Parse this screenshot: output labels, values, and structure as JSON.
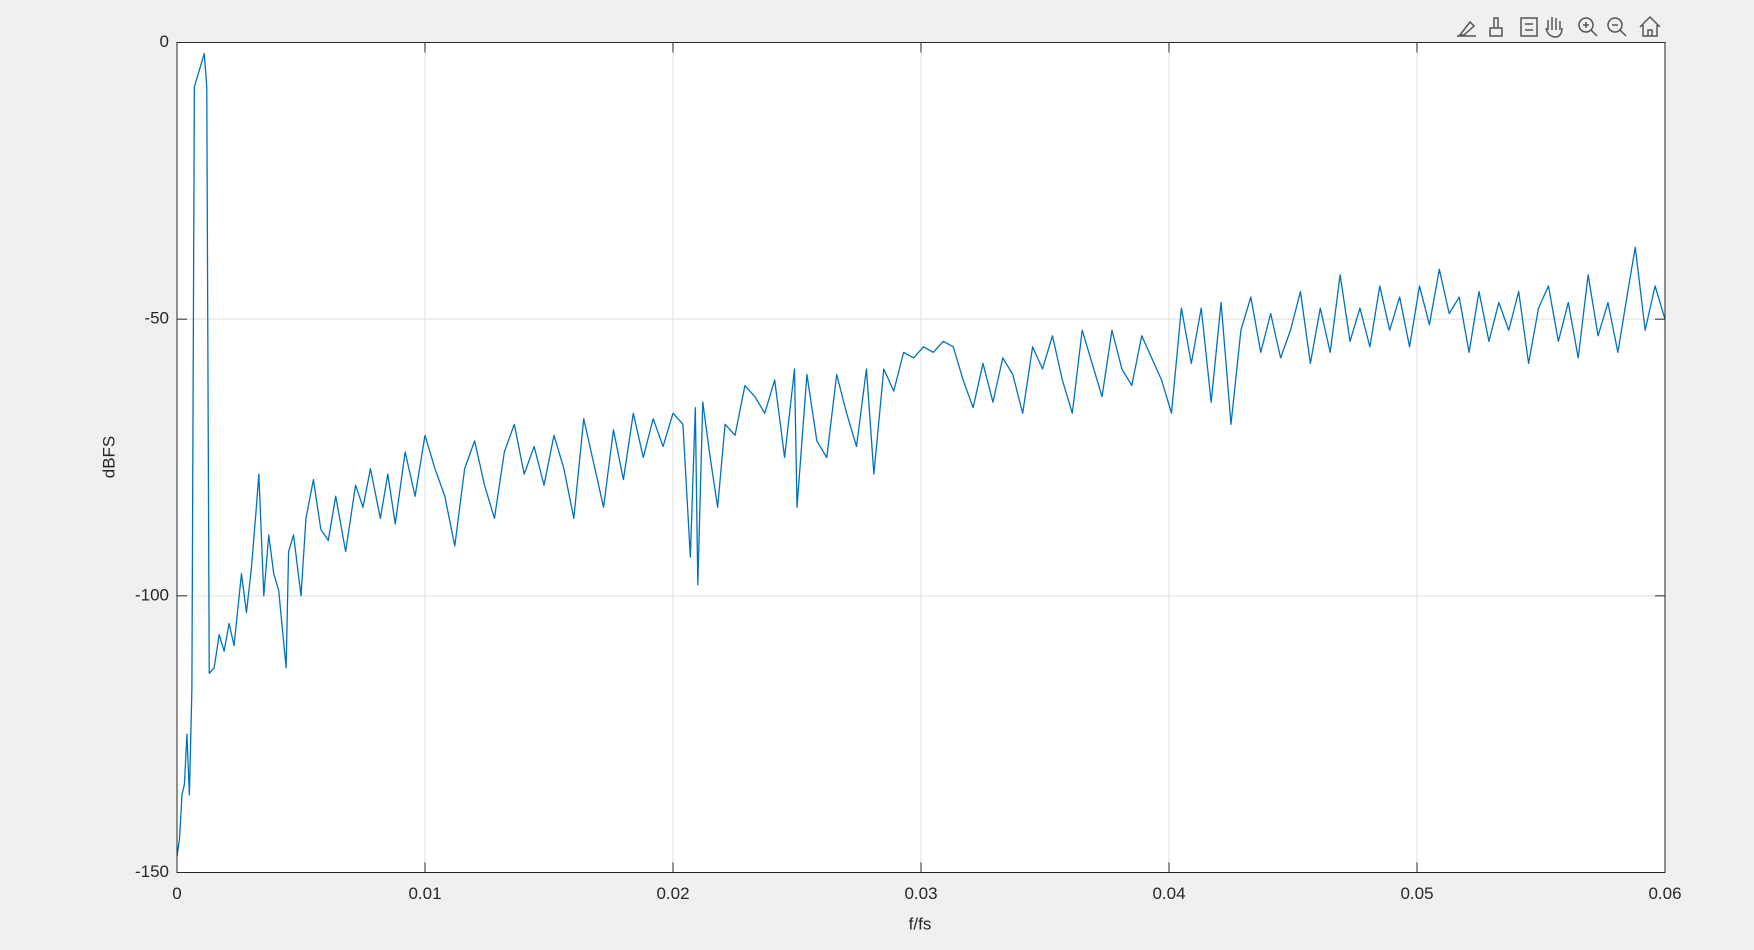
{
  "chart_data": {
    "type": "line",
    "xlabel": "f/fs",
    "ylabel": "dBFS",
    "color": "#0072bd",
    "grid": true,
    "xlim": [
      0,
      0.06
    ],
    "ylim": [
      -150,
      0
    ],
    "xticks": [
      0,
      0.01,
      0.02,
      0.03,
      0.04,
      0.05,
      0.06
    ],
    "yticks": [
      -150,
      -100,
      -50,
      0
    ],
    "x": [
      0,
      0.0001,
      0.0002,
      0.0003,
      0.0004,
      0.0005,
      0.0006,
      0.0007,
      0.0011,
      0.0012,
      0.0013,
      0.0015,
      0.0017,
      0.0019,
      0.0021,
      0.0023,
      0.0026,
      0.0028,
      0.003,
      0.0032,
      0.0033,
      0.0035,
      0.0037,
      0.0039,
      0.0041,
      0.0044,
      0.0045,
      0.0047,
      0.005,
      0.0052,
      0.0055,
      0.0058,
      0.0061,
      0.0064,
      0.0068,
      0.0072,
      0.0075,
      0.0078,
      0.0082,
      0.0085,
      0.0088,
      0.0092,
      0.0096,
      0.01,
      0.0104,
      0.0108,
      0.0112,
      0.0116,
      0.012,
      0.0124,
      0.0128,
      0.0132,
      0.0136,
      0.014,
      0.0144,
      0.0148,
      0.0152,
      0.0156,
      0.016,
      0.0164,
      0.0168,
      0.0172,
      0.0176,
      0.018,
      0.0184,
      0.0188,
      0.0192,
      0.0196,
      0.02,
      0.0204,
      0.0207,
      0.0209,
      0.021,
      0.0212,
      0.0215,
      0.0218,
      0.0221,
      0.0225,
      0.0229,
      0.0233,
      0.0237,
      0.0241,
      0.0245,
      0.0249,
      0.025,
      0.0254,
      0.0258,
      0.0262,
      0.0266,
      0.027,
      0.0274,
      0.0278,
      0.0281,
      0.0285,
      0.0289,
      0.0293,
      0.0297,
      0.0301,
      0.0305,
      0.0309,
      0.0313,
      0.0317,
      0.0321,
      0.0325,
      0.0329,
      0.0333,
      0.0337,
      0.0341,
      0.0345,
      0.0349,
      0.0353,
      0.0357,
      0.0361,
      0.0365,
      0.0369,
      0.0373,
      0.0377,
      0.0381,
      0.0385,
      0.0389,
      0.0393,
      0.0397,
      0.0401,
      0.0405,
      0.0409,
      0.0413,
      0.0417,
      0.0421,
      0.0425,
      0.0429,
      0.0433,
      0.0437,
      0.0441,
      0.0445,
      0.0449,
      0.0453,
      0.0457,
      0.0461,
      0.0465,
      0.0469,
      0.0473,
      0.0477,
      0.0481,
      0.0485,
      0.0489,
      0.0493,
      0.0497,
      0.0501,
      0.0505,
      0.0509,
      0.0513,
      0.0517,
      0.0521,
      0.0525,
      0.0529,
      0.0533,
      0.0537,
      0.0541,
      0.0545,
      0.0549,
      0.0553,
      0.0557,
      0.0561,
      0.0565,
      0.0569,
      0.0573,
      0.0577,
      0.0581,
      0.0585,
      0.0588,
      0.0592,
      0.0596,
      0.06
    ],
    "values": [
      -147,
      -144,
      -136,
      -134,
      -125,
      -136,
      -117,
      -8,
      -2,
      -8,
      -114,
      -113,
      -107,
      -110,
      -105,
      -109,
      -96,
      -103,
      -95,
      -84,
      -78,
      -100,
      -89,
      -96,
      -99,
      -113,
      -92,
      -89,
      -100,
      -86,
      -79,
      -88,
      -90,
      -82,
      -92,
      -80,
      -84,
      -77,
      -86,
      -78,
      -87,
      -74,
      -82,
      -71,
      -77,
      -82,
      -91,
      -77,
      -72,
      -80,
      -86,
      -74,
      -69,
      -78,
      -73,
      -80,
      -71,
      -77,
      -86,
      -68,
      -76,
      -84,
      -70,
      -79,
      -67,
      -75,
      -68,
      -73,
      -67,
      -69,
      -93,
      -66,
      -98,
      -65,
      -75,
      -84,
      -69,
      -71,
      -62,
      -64,
      -67,
      -61,
      -75,
      -59,
      -84,
      -60,
      -72,
      -75,
      -60,
      -67,
      -73,
      -59,
      -78,
      -59,
      -63,
      -56,
      -57,
      -55,
      -56,
      -54,
      -55,
      -61,
      -66,
      -58,
      -65,
      -57,
      -60,
      -67,
      -55,
      -59,
      -53,
      -61,
      -67,
      -52,
      -58,
      -64,
      -52,
      -59,
      -62,
      -53,
      -57,
      -61,
      -67,
      -48,
      -58,
      -48,
      -65,
      -47,
      -69,
      -52,
      -46,
      -56,
      -49,
      -57,
      -52,
      -45,
      -58,
      -48,
      -56,
      -42,
      -54,
      -48,
      -55,
      -44,
      -52,
      -46,
      -55,
      -44,
      -51,
      -41,
      -49,
      -46,
      -56,
      -45,
      -54,
      -47,
      -52,
      -45,
      -58,
      -48,
      -44,
      -54,
      -47,
      -57,
      -42,
      -53,
      -47,
      -56,
      -45,
      -37,
      -52,
      -44,
      -50
    ]
  }
}
